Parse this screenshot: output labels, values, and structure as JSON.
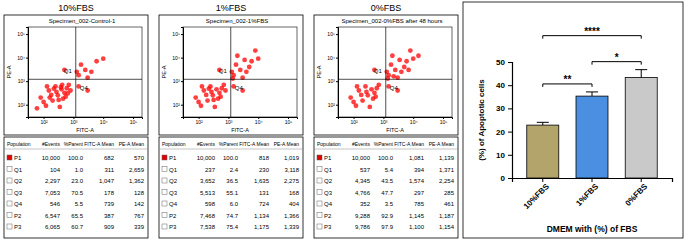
{
  "chart_data": [
    {
      "type": "scatter",
      "title": "10%FBS",
      "subtitle": "Specimen_002-Control-1",
      "x_label": "FITC-A",
      "y_label": "PE-A",
      "color": "#ff0000",
      "log": true,
      "xlim": [
        30,
        200000
      ],
      "ylim": [
        30,
        200000
      ],
      "xticks": [
        {
          "value": 100,
          "label": "10²"
        },
        {
          "value": 1000,
          "label": "10³"
        },
        {
          "value": 10000,
          "label": "10⁴"
        },
        {
          "value": 100000,
          "label": "10⁵"
        }
      ],
      "yticks": [
        {
          "value": 100,
          "label": "10²"
        },
        {
          "value": 1000,
          "label": "10³"
        },
        {
          "value": 10000,
          "label": "10⁴"
        },
        {
          "value": 100000,
          "label": "10⁵"
        }
      ],
      "gate": {
        "x": 1200,
        "y": 1200
      },
      "quadrant_labels": [
        "Q1",
        "Q4"
      ],
      "x": [
        120,
        200,
        300,
        450,
        150,
        600,
        250,
        80,
        350,
        500,
        180,
        700,
        400,
        100,
        270,
        550,
        130,
        800,
        60,
        320,
        220,
        650,
        420,
        160,
        380,
        1500,
        2500,
        4000,
        1800,
        6000,
        3000,
        1300,
        10000,
        1500,
        3000,
        500
      ],
      "values": [
        90,
        150,
        250,
        180,
        400,
        500,
        600,
        200,
        80,
        320,
        260,
        700,
        450,
        130,
        350,
        220,
        600,
        400,
        70,
        160,
        480,
        300,
        700,
        200,
        550,
        1800,
        3000,
        2500,
        5000,
        7000,
        1400,
        2500,
        9000,
        600,
        400,
        3000
      ],
      "table": {
        "columns": [
          "Population",
          "#Events",
          "%Parent",
          "FITC-A Mean",
          "PE-A Mean"
        ],
        "rows": [
          [
            "P1",
            "10,000",
            "100.0",
            "682",
            "570"
          ],
          [
            "Q1",
            "104",
            "1.0",
            "311",
            "2,659"
          ],
          [
            "Q2",
            "2,297",
            "23.0",
            "1,047",
            "1,362"
          ],
          [
            "Q3",
            "7,053",
            "70.5",
            "178",
            "128"
          ],
          [
            "Q4",
            "546",
            "5.5",
            "739",
            "142"
          ],
          [
            "P2",
            "6,547",
            "65.5",
            "387",
            "767"
          ],
          [
            "P3",
            "6,065",
            "60.7",
            "909",
            "339"
          ]
        ]
      }
    },
    {
      "type": "scatter",
      "title": "1%FBS",
      "subtitle": "Specimen_002-1%FBS",
      "x_label": "FITC-A",
      "y_label": "PE-A",
      "color": "#ff0000",
      "log": true,
      "xlim": [
        30,
        200000
      ],
      "ylim": [
        30,
        200000
      ],
      "xticks": [
        {
          "value": 100,
          "label": "10²"
        },
        {
          "value": 1000,
          "label": "10³"
        },
        {
          "value": 10000,
          "label": "10⁴"
        },
        {
          "value": 100000,
          "label": "10⁵"
        }
      ],
      "yticks": [
        {
          "value": 100,
          "label": "10²"
        },
        {
          "value": 1000,
          "label": "10³"
        },
        {
          "value": 10000,
          "label": "10⁴"
        },
        {
          "value": 100000,
          "label": "10⁵"
        }
      ],
      "gate": {
        "x": 1200,
        "y": 1200
      },
      "quadrant_labels": [
        "Q1",
        "Q4"
      ],
      "x": [
        120,
        200,
        300,
        450,
        150,
        600,
        250,
        80,
        350,
        500,
        180,
        700,
        400,
        100,
        270,
        550,
        130,
        800,
        320,
        220,
        1500,
        2500,
        4000,
        1800,
        6000,
        3000,
        1300,
        10000,
        2000,
        5000,
        8000,
        1400,
        3500,
        1500,
        3000,
        500
      ],
      "values": [
        90,
        150,
        250,
        180,
        400,
        500,
        600,
        200,
        80,
        320,
        260,
        700,
        450,
        130,
        350,
        220,
        600,
        400,
        160,
        480,
        1800,
        3000,
        2500,
        5000,
        7000,
        1400,
        2500,
        9000,
        12000,
        4000,
        20000,
        1300,
        8000,
        600,
        400,
        3000
      ],
      "table": {
        "columns": [
          "Population",
          "#Events",
          "%Parent",
          "FITC-A Mean",
          "PE-A Mean"
        ],
        "rows": [
          [
            "P1",
            "10,000",
            "100.0",
            "818",
            "1,019"
          ],
          [
            "Q1",
            "237",
            "2.4",
            "230",
            "3,118"
          ],
          [
            "Q2",
            "3,652",
            "36.5",
            "1,635",
            "2,275"
          ],
          [
            "Q3",
            "5,513",
            "55.1",
            "131",
            "168"
          ],
          [
            "Q4",
            "598",
            "6.0",
            "724",
            "404"
          ],
          [
            "P2",
            "7,468",
            "74.7",
            "1,134",
            "1,366"
          ],
          [
            "P3",
            "7,538",
            "75.4",
            "1,175",
            "1,339"
          ]
        ]
      }
    },
    {
      "type": "scatter",
      "title": "0%FBS",
      "subtitle": "Specimen_002-0%FBS after 48 hours",
      "x_label": "FITC-A",
      "y_label": "PE-A",
      "color": "#ff0000",
      "log": true,
      "xlim": [
        30,
        200000
      ],
      "ylim": [
        30,
        200000
      ],
      "xticks": [
        {
          "value": 100,
          "label": "10²"
        },
        {
          "value": 1000,
          "label": "10³"
        },
        {
          "value": 10000,
          "label": "10⁴"
        },
        {
          "value": 100000,
          "label": "10⁵"
        }
      ],
      "yticks": [
        {
          "value": 100,
          "label": "10²"
        },
        {
          "value": 1000,
          "label": "10³"
        },
        {
          "value": 10000,
          "label": "10⁴"
        },
        {
          "value": 100000,
          "label": "10⁵"
        }
      ],
      "gate": {
        "x": 1200,
        "y": 1200
      },
      "quadrant_labels": [
        "Q1",
        "Q4"
      ],
      "x": [
        120,
        200,
        300,
        450,
        150,
        600,
        250,
        80,
        350,
        500,
        180,
        700,
        400,
        100,
        270,
        550,
        130,
        1500,
        2500,
        4000,
        1800,
        6000,
        3000,
        1300,
        10000,
        2000,
        5000,
        8000,
        1400,
        3500,
        15000,
        2200,
        7000,
        1500,
        3000,
        500
      ],
      "values": [
        90,
        150,
        250,
        180,
        400,
        500,
        600,
        200,
        80,
        320,
        260,
        700,
        450,
        130,
        350,
        220,
        600,
        1800,
        3000,
        2500,
        5000,
        7000,
        1400,
        2500,
        9000,
        12000,
        4000,
        20000,
        1300,
        8000,
        12000,
        1600,
        3000,
        600,
        400,
        3000
      ],
      "table": {
        "columns": [
          "Population",
          "#Events",
          "%Parent",
          "FITC-A Mean",
          "PE-A Mean"
        ],
        "rows": [
          [
            "P1",
            "10,000",
            "100.0",
            "1,081",
            "1,139"
          ],
          [
            "Q1",
            "537",
            "5.4",
            "394",
            "1,371"
          ],
          [
            "Q2",
            "4,345",
            "43.5",
            "1,574",
            "2,254"
          ],
          [
            "Q3",
            "4,766",
            "47.7",
            "297",
            "285"
          ],
          [
            "Q4",
            "352",
            "3.5",
            "785",
            "461"
          ],
          [
            "P2",
            "9,288",
            "92.9",
            "1,145",
            "1,187"
          ],
          [
            "P3",
            "9,786",
            "97.9",
            "1,100",
            "1,154"
          ]
        ]
      }
    },
    {
      "type": "bar",
      "x_label": "DMEM with (%) of FBS",
      "y_label": "(%) of Apoptotic cells",
      "categories": [
        "10%FBS",
        "1%FBS",
        "0%FBS"
      ],
      "values": [
        22.8,
        35.3,
        43.3
      ],
      "errors": [
        1.2,
        1.8,
        3.4
      ],
      "colors": [
        "#b3a46c",
        "#4a8fe0",
        "#c9c9c9"
      ],
      "ylim": [
        0,
        50
      ],
      "yticks": [
        0,
        10,
        20,
        30,
        40,
        50
      ],
      "annotations": [
        {
          "text": "****",
          "from": "10%FBS",
          "to": "0%FBS"
        },
        {
          "text": "**",
          "from": "10%FBS",
          "to": "1%FBS"
        },
        {
          "text": "*",
          "from": "1%FBS",
          "to": "0%FBS"
        }
      ]
    }
  ]
}
